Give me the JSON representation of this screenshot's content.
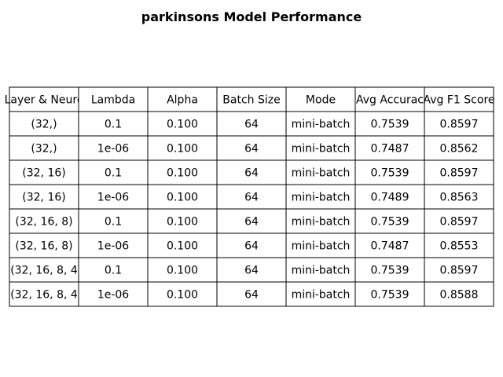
{
  "chart_data": {
    "type": "table",
    "title": "parkinsons Model Performance",
    "columns": [
      "Layer & Neurons",
      "Lambda",
      "Alpha",
      "Batch Size",
      "Mode",
      "Avg Accuracy",
      "Avg F1 Score"
    ],
    "column_labels_visible": [
      "Layer & Neuro",
      "Lambda",
      "Alpha",
      "Batch Size",
      "Mode",
      "Avg Accurac",
      "Avg F1 Score"
    ],
    "rows": [
      [
        "(32,)",
        "0.1",
        "0.100",
        "64",
        "mini-batch",
        "0.7539",
        "0.8597"
      ],
      [
        "(32,)",
        "1e-06",
        "0.100",
        "64",
        "mini-batch",
        "0.7487",
        "0.8562"
      ],
      [
        "(32, 16)",
        "0.1",
        "0.100",
        "64",
        "mini-batch",
        "0.7539",
        "0.8597"
      ],
      [
        "(32, 16)",
        "1e-06",
        "0.100",
        "64",
        "mini-batch",
        "0.7489",
        "0.8563"
      ],
      [
        "(32, 16, 8)",
        "0.1",
        "0.100",
        "64",
        "mini-batch",
        "0.7539",
        "0.8597"
      ],
      [
        "(32, 16, 8)",
        "1e-06",
        "0.100",
        "64",
        "mini-batch",
        "0.7487",
        "0.8553"
      ],
      [
        "(32, 16, 8, 4",
        "0.1",
        "0.100",
        "64",
        "mini-batch",
        "0.7539",
        "0.8597"
      ],
      [
        "(32, 16, 8, 4",
        "1e-06",
        "0.100",
        "64",
        "mini-batch",
        "0.7539",
        "0.8588"
      ]
    ]
  }
}
